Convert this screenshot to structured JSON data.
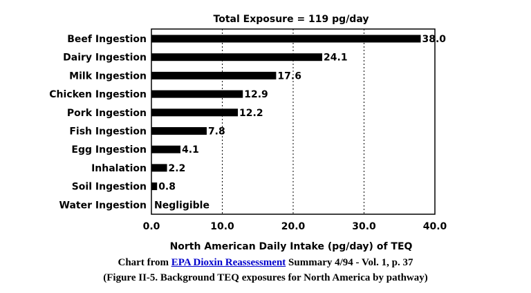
{
  "chart_data": {
    "type": "bar",
    "orientation": "horizontal",
    "title": "Total Exposure = 119 pg/day",
    "xlabel": "North American Daily Intake (pg/day) of TEQ",
    "ylabel": "",
    "xlim": [
      0,
      40
    ],
    "xticks": [
      "0.0",
      "10.0",
      "20.0",
      "30.0",
      "40.0"
    ],
    "grid": "vertical dotted",
    "categories": [
      "Beef Ingestion",
      "Dairy Ingestion",
      "Milk Ingestion",
      "Chicken Ingestion",
      "Pork Ingestion",
      "Fish Ingestion",
      "Egg Ingestion",
      "Inhalation",
      "Soil Ingestion",
      "Water Ingestion"
    ],
    "values": [
      38.0,
      24.1,
      17.6,
      12.9,
      12.2,
      7.8,
      4.1,
      2.2,
      0.8,
      0
    ],
    "value_labels": [
      "38.0",
      "24.1",
      "17.6",
      "12.9",
      "12.2",
      "7.8",
      "4.1",
      "2.2",
      "0.8",
      "Negligible"
    ],
    "bar_color": "#000000"
  },
  "caption": {
    "line1_prefix": "Chart from ",
    "line1_link": "EPA Dioxin Reassessment",
    "line1_suffix": " Summary 4/94 - Vol. 1, p. 37",
    "line2": "(Figure II-5. Background TEQ exposures for North America by pathway)"
  }
}
